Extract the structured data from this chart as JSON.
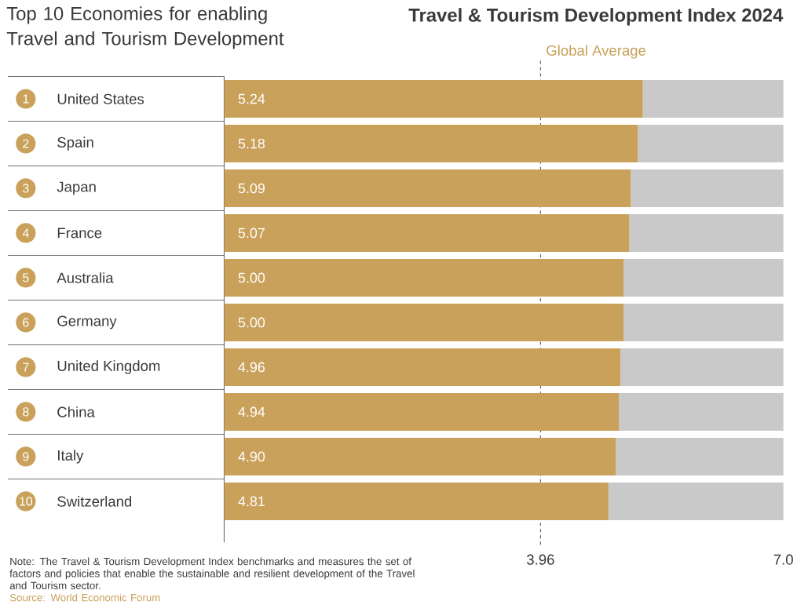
{
  "chart_data": {
    "type": "bar",
    "orientation": "horizontal",
    "stacked": true,
    "title": "Top 10 Economies for enabling Travel and Tourism Development",
    "subtitle": "Travel & Tourism Development Index 2024",
    "categories": [
      "United States",
      "Spain",
      "Japan",
      "France",
      "Australia",
      "Germany",
      "United Kingdom",
      "China",
      "Italy",
      "Switzerland"
    ],
    "series": [
      {
        "color": "#c9a15a",
        "values": [
          5.24,
          5.18,
          5.09,
          5.07,
          5.0,
          5.0,
          4.96,
          4.94,
          4.9,
          4.81
        ],
        "value_labels": [
          "5.24",
          "5.18",
          "5.09",
          "5.07",
          "5.00",
          "5.00",
          "4.96",
          "4.94",
          "4.90",
          "4.81"
        ]
      },
      {
        "color": "#c9c9c9",
        "values": [
          1.76,
          1.82,
          1.91,
          1.93,
          2.0,
          2.0,
          2.04,
          2.06,
          2.1,
          2.19
        ]
      }
    ],
    "xlim": [
      0,
      7
    ],
    "xticks": [
      3.96,
      {
        "value": 7,
        "label": "7.0"
      }
    ],
    "ref_lines": [
      {
        "axis": "x",
        "value": 3.96,
        "label": "Global Average",
        "line_style": "dashed",
        "color": "#555555"
      }
    ],
    "annotations": [
      "1",
      "2",
      "3",
      "4",
      "5",
      "6",
      "7",
      "8",
      "9",
      "10",
      "Note: The Travel & Tourism Development Index benchmarks and measures the set of factors and policies that enable the sustainable and resilient development of the Travel and Tourism sector.",
      "Source: World Economic Forum"
    ]
  }
}
